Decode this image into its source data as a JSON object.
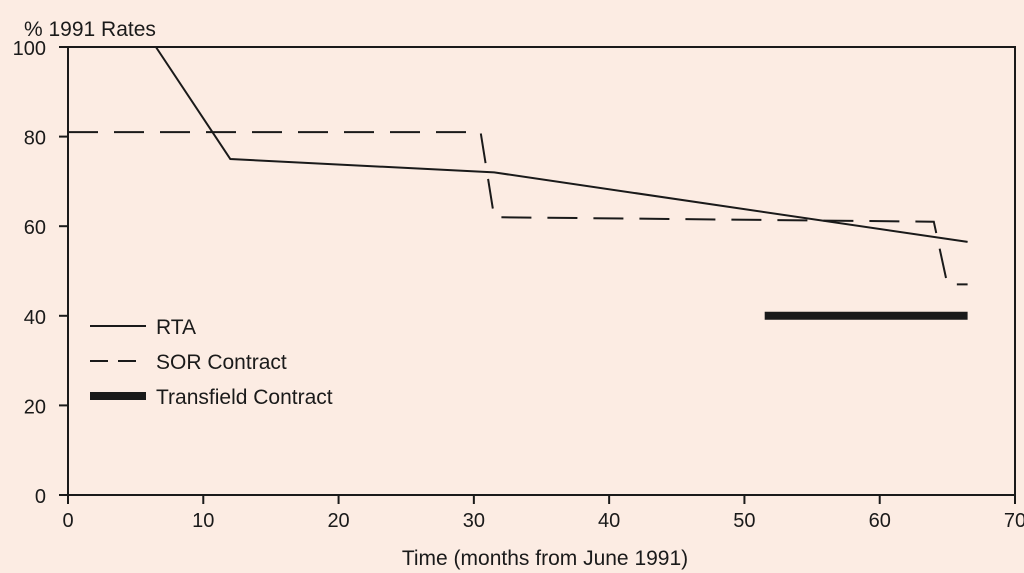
{
  "chart_data": {
    "type": "line",
    "title": "",
    "ylabel": "% 1991 Rates",
    "xlabel": "Time (months from June 1991)",
    "xlim": [
      0,
      70
    ],
    "ylim": [
      0,
      100
    ],
    "x_ticks": [
      0,
      10,
      20,
      30,
      40,
      50,
      60,
      70
    ],
    "y_ticks": [
      0,
      20,
      40,
      60,
      80,
      100
    ],
    "grid": false,
    "legend_position": "bottom-left",
    "series": [
      {
        "name": "RTA",
        "style": "solid",
        "x": [
          6.5,
          12,
          31.5,
          66.5
        ],
        "y": [
          100,
          75,
          72,
          56.5
        ]
      },
      {
        "name": "SOR Contract",
        "style": "dashed",
        "x": [
          0,
          30.5,
          31.5,
          64,
          65,
          66.5
        ],
        "y": [
          81,
          81,
          62,
          61,
          47,
          47
        ]
      },
      {
        "name": "Transfield Contract",
        "style": "thick",
        "x": [
          51.5,
          66.5
        ],
        "y": [
          40,
          40
        ]
      }
    ]
  }
}
